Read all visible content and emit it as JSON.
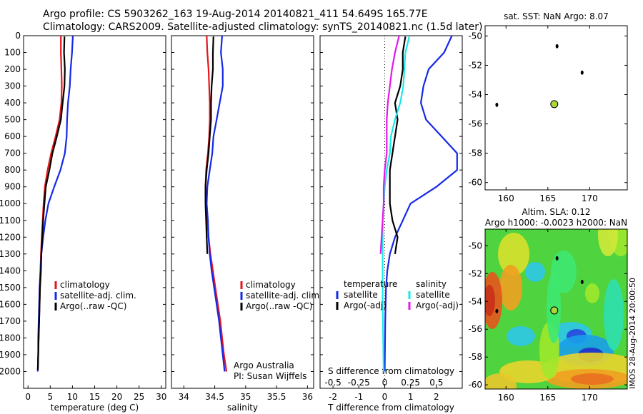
{
  "header": {
    "title_line1": "Argo profile: CS 5903262_163 19-Aug-2014 20140821_411 54.649S 165.77E",
    "title_line2": "Climatology: CARS2009. Satellite-adjusted climatology: synTS_20140821.nc (1.5d later)"
  },
  "side_text": "IMOS 28-Aug-2014 20:00:50",
  "colors": {
    "climatology": "#e8141c",
    "satellite": "#1428e8",
    "argo": "#000000",
    "satellite_salinity": "#18e8e8",
    "argo_salinity": "#e418e8"
  },
  "chart_data": [
    {
      "type": "line",
      "panel": "temperature",
      "xlabel": "temperature (deg C)",
      "ylabel": "",
      "xlim": [
        -1,
        31
      ],
      "ylim": [
        2100,
        0
      ],
      "xticks": [
        0,
        5,
        10,
        15,
        20,
        25,
        30
      ],
      "yticks": [
        0,
        100,
        200,
        300,
        400,
        500,
        600,
        700,
        800,
        900,
        1000,
        1100,
        1200,
        1300,
        1400,
        1500,
        1600,
        1700,
        1800,
        1900,
        2000
      ],
      "legend": [
        "climatology",
        "satellite-adj. clim.",
        "Argo(..raw -QC)"
      ],
      "series": [
        {
          "name": "climatology",
          "color": "#e8141c",
          "points": [
            [
              7.4,
              0
            ],
            [
              7.4,
              100
            ],
            [
              7.5,
              200
            ],
            [
              7.6,
              300
            ],
            [
              7.5,
              400
            ],
            [
              7.1,
              500
            ],
            [
              6.2,
              600
            ],
            [
              5.2,
              700
            ],
            [
              4.4,
              800
            ],
            [
              3.8,
              900
            ],
            [
              3.5,
              1000
            ],
            [
              3.3,
              1100
            ],
            [
              3.1,
              1200
            ],
            [
              2.9,
              1300
            ],
            [
              2.8,
              1400
            ],
            [
              2.7,
              1500
            ],
            [
              2.6,
              1600
            ],
            [
              2.5,
              1700
            ],
            [
              2.4,
              1800
            ],
            [
              2.3,
              1900
            ],
            [
              2.2,
              2000
            ]
          ]
        },
        {
          "name": "satellite-adj. clim.",
          "color": "#1428e8",
          "points": [
            [
              10.1,
              0
            ],
            [
              9.9,
              100
            ],
            [
              9.6,
              200
            ],
            [
              9.4,
              300
            ],
            [
              9.0,
              400
            ],
            [
              8.8,
              500
            ],
            [
              8.7,
              600
            ],
            [
              8.3,
              700
            ],
            [
              7.3,
              800
            ],
            [
              5.9,
              900
            ],
            [
              4.6,
              1000
            ],
            [
              3.9,
              1100
            ],
            [
              3.4,
              1200
            ],
            [
              3.0,
              1300
            ],
            [
              2.8,
              1400
            ],
            [
              2.6,
              1500
            ],
            [
              2.5,
              1600
            ],
            [
              2.4,
              1700
            ],
            [
              2.3,
              1800
            ],
            [
              2.3,
              1900
            ],
            [
              2.2,
              2000
            ]
          ]
        },
        {
          "name": "Argo(..raw -QC)",
          "color": "#000000",
          "points": [
            [
              8.2,
              5
            ],
            [
              8.1,
              100
            ],
            [
              8.3,
              200
            ],
            [
              8.2,
              300
            ],
            [
              7.8,
              400
            ],
            [
              7.4,
              500
            ],
            [
              6.5,
              600
            ],
            [
              5.5,
              700
            ],
            [
              4.8,
              800
            ],
            [
              4.0,
              900
            ],
            [
              3.7,
              1000
            ],
            [
              3.4,
              1100
            ],
            [
              3.2,
              1200
            ],
            [
              3.0,
              1300
            ],
            [
              2.9,
              1400
            ],
            [
              2.7,
              1500
            ],
            [
              2.6,
              1600
            ],
            [
              2.5,
              1700
            ],
            [
              2.4,
              1800
            ],
            [
              2.3,
              1900
            ],
            [
              2.2,
              1990
            ]
          ]
        }
      ]
    },
    {
      "type": "line",
      "panel": "salinity",
      "xlabel": "salinity",
      "ylabel": "",
      "xlim": [
        33.8,
        36.1
      ],
      "ylim": [
        2100,
        0
      ],
      "xticks": [
        34,
        34.5,
        35,
        35.5,
        36
      ],
      "xtick_labels": [
        "34",
        "34.5",
        "35",
        "35.5",
        "36"
      ],
      "legend": [
        "climatology",
        "satellite-adj. clim.",
        "Argo(..raw -QC)"
      ],
      "series": [
        {
          "name": "climatology",
          "color": "#e8141c",
          "points": [
            [
              34.37,
              0
            ],
            [
              34.38,
              100
            ],
            [
              34.4,
              200
            ],
            [
              34.41,
              300
            ],
            [
              34.42,
              400
            ],
            [
              34.42,
              500
            ],
            [
              34.41,
              600
            ],
            [
              34.39,
              700
            ],
            [
              34.36,
              800
            ],
            [
              34.35,
              900
            ],
            [
              34.36,
              1000
            ],
            [
              34.38,
              1100
            ],
            [
              34.4,
              1200
            ],
            [
              34.43,
              1300
            ],
            [
              34.47,
              1400
            ],
            [
              34.51,
              1500
            ],
            [
              34.55,
              1600
            ],
            [
              34.59,
              1700
            ],
            [
              34.62,
              1800
            ],
            [
              34.65,
              1900
            ],
            [
              34.69,
              2000
            ]
          ]
        },
        {
          "name": "satellite-adj. clim.",
          "color": "#1428e8",
          "points": [
            [
              34.62,
              0
            ],
            [
              34.6,
              100
            ],
            [
              34.63,
              200
            ],
            [
              34.63,
              300
            ],
            [
              34.58,
              400
            ],
            [
              34.53,
              500
            ],
            [
              34.48,
              600
            ],
            [
              34.46,
              700
            ],
            [
              34.42,
              800
            ],
            [
              34.38,
              900
            ],
            [
              34.37,
              1000
            ],
            [
              34.39,
              1100
            ],
            [
              34.4,
              1200
            ],
            [
              34.42,
              1300
            ],
            [
              34.45,
              1400
            ],
            [
              34.49,
              1500
            ],
            [
              34.53,
              1600
            ],
            [
              34.57,
              1700
            ],
            [
              34.6,
              1800
            ],
            [
              34.63,
              1900
            ],
            [
              34.66,
              2000
            ]
          ]
        },
        {
          "name": "Argo(..raw -QC)",
          "color": "#000000",
          "points": [
            [
              34.48,
              5
            ],
            [
              34.47,
              100
            ],
            [
              34.47,
              200
            ],
            [
              34.45,
              300
            ],
            [
              34.44,
              400
            ],
            [
              34.44,
              500
            ],
            [
              34.42,
              600
            ],
            [
              34.4,
              700
            ],
            [
              34.37,
              800
            ],
            [
              34.35,
              900
            ],
            [
              34.35,
              1000
            ],
            [
              34.36,
              1100
            ],
            [
              34.37,
              1200
            ],
            [
              34.38,
              1300
            ]
          ]
        }
      ]
    },
    {
      "type": "line",
      "panel": "difference",
      "xlabel": "T difference from climatology",
      "x2label": "S difference from climatology",
      "xlim": [
        -2.5,
        3.0
      ],
      "ylim": [
        2100,
        0
      ],
      "xticks_T": [
        -2,
        -1,
        0,
        1,
        2
      ],
      "xticks_S": [
        -0.5,
        -0.25,
        0,
        0.25,
        0.5
      ],
      "xtick_S_labels": [
        "-0.5",
        "-0.25",
        "0",
        "0.25",
        "0.5"
      ],
      "legend_groups": [
        {
          "title": "temperature",
          "entries": [
            "satellite",
            "Argo(-adj)"
          ]
        },
        {
          "title": "salinity",
          "entries": [
            "satellite",
            "Argo(-adj)"
          ]
        }
      ],
      "series": [
        {
          "name": "temperature satellite",
          "color": "#1428e8",
          "points": [
            [
              2.6,
              0
            ],
            [
              2.3,
              100
            ],
            [
              1.7,
              200
            ],
            [
              1.5,
              300
            ],
            [
              1.4,
              400
            ],
            [
              1.6,
              500
            ],
            [
              2.2,
              600
            ],
            [
              2.8,
              700
            ],
            [
              2.8,
              800
            ],
            [
              2.0,
              900
            ],
            [
              1.0,
              1000
            ],
            [
              0.7,
              1100
            ],
            [
              0.4,
              1200
            ],
            [
              0.2,
              1300
            ],
            [
              0.1,
              1400
            ],
            [
              0.05,
              1500
            ],
            [
              0.02,
              1700
            ],
            [
              0,
              2000
            ]
          ]
        },
        {
          "name": "temperature Argo(-adj)",
          "color": "#000000",
          "points": [
            [
              0.8,
              5
            ],
            [
              0.7,
              100
            ],
            [
              0.7,
              200
            ],
            [
              0.6,
              300
            ],
            [
              0.4,
              400
            ],
            [
              0.5,
              500
            ],
            [
              0.4,
              600
            ],
            [
              0.3,
              700
            ],
            [
              0.2,
              800
            ],
            [
              0.2,
              900
            ],
            [
              0.2,
              1000
            ],
            [
              0.3,
              1100
            ],
            [
              0.5,
              1200
            ],
            [
              0.4,
              1300
            ]
          ]
        },
        {
          "name": "salinity satellite",
          "color": "#18e8e8",
          "points": [
            [
              0.24,
              0
            ],
            [
              0.2,
              100
            ],
            [
              0.19,
              200
            ],
            [
              0.18,
              300
            ],
            [
              0.15,
              400
            ],
            [
              0.1,
              500
            ],
            [
              0.06,
              600
            ],
            [
              0.05,
              700
            ],
            [
              0.02,
              800
            ],
            [
              0,
              900
            ],
            [
              -0.02,
              1100
            ],
            [
              -0.02,
              1300
            ],
            [
              -0.02,
              1600
            ],
            [
              -0.01,
              2000
            ]
          ]
        },
        {
          "name": "salinity Argo(-adj)",
          "color": "#e418e8",
          "points": [
            [
              0.14,
              0
            ],
            [
              0.1,
              100
            ],
            [
              0.07,
              200
            ],
            [
              0.05,
              300
            ],
            [
              0.03,
              400
            ],
            [
              0.02,
              500
            ],
            [
              0.02,
              600
            ],
            [
              0.02,
              700
            ],
            [
              0,
              800
            ],
            [
              -0.01,
              900
            ],
            [
              -0.01,
              1000
            ],
            [
              -0.02,
              1100
            ],
            [
              -0.03,
              1200
            ],
            [
              -0.04,
              1300
            ]
          ]
        }
      ]
    },
    {
      "type": "scatter",
      "panel": "sst-map",
      "title": "sat. SST: NaN  Argo: 8.07",
      "xlim": [
        157.5,
        174.5
      ],
      "ylim": [
        -60.5,
        -49.3
      ],
      "xticks": [
        160,
        165,
        170
      ],
      "yticks": [
        -50,
        -52,
        -54,
        -56,
        -58,
        -60
      ],
      "argo_position": [
        165.77,
        -54.649
      ],
      "islands": [
        [
          166.1,
          -50.7
        ],
        [
          169.1,
          -52.5
        ],
        [
          158.9,
          -54.7
        ]
      ]
    },
    {
      "type": "heatmap",
      "panel": "sla-map",
      "title_line1": "Altim. SLA: 0.12",
      "title_line2": "Argo h1000: -0.0023  h2000: NaN",
      "xlim": [
        157.5,
        174.5
      ],
      "ylim": [
        -60.3,
        -48.8
      ],
      "xticks": [
        160,
        165,
        170
      ],
      "yticks": [
        -50,
        -52,
        -54,
        -56,
        -58,
        -60
      ],
      "argo_position": [
        165.77,
        -54.649
      ],
      "islands": [
        [
          166.1,
          -50.9
        ],
        [
          169.1,
          -52.6
        ],
        [
          158.9,
          -54.7
        ]
      ]
    }
  ]
}
